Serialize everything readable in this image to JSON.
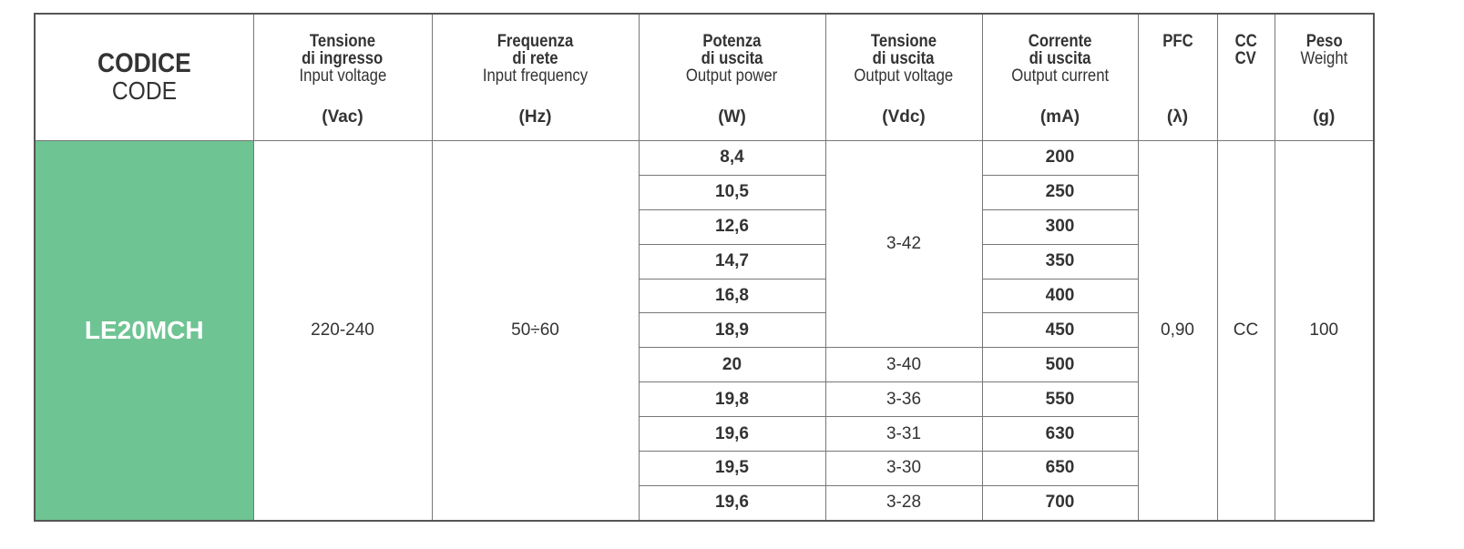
{
  "header": {
    "columns": [
      {
        "bold": [
          "CODICE"
        ],
        "regular": [
          "CODE"
        ]
      },
      {
        "bold": [
          "Tensione",
          "di ingresso"
        ],
        "regular": [
          "Input voltage"
        ],
        "unit": "(Vac)"
      },
      {
        "bold": [
          "Frequenza",
          "di rete"
        ],
        "regular": [
          "Input frequency"
        ],
        "unit": "(Hz)"
      },
      {
        "bold": [
          "Potenza",
          "di uscita"
        ],
        "regular": [
          "Output power"
        ],
        "unit": "(W)"
      },
      {
        "bold": [
          "Tensione",
          "di uscita"
        ],
        "regular": [
          "Output voltage"
        ],
        "unit": "(Vdc)"
      },
      {
        "bold": [
          "Corrente",
          "di uscita"
        ],
        "regular": [
          "Output current"
        ],
        "unit": "(mA)"
      },
      {
        "bold": [
          "PFC"
        ],
        "unit": "(λ)"
      },
      {
        "bold": [
          "CC",
          "CV"
        ]
      },
      {
        "bold": [
          "Peso"
        ],
        "regular": [
          "Weight"
        ],
        "unit": "(g)"
      }
    ]
  },
  "body": {
    "code": "LE20MCH",
    "input_voltage": "220-240",
    "input_frequency": "50÷60",
    "output_power": [
      "8,4",
      "10,5",
      "12,6",
      "14,7",
      "16,8",
      "18,9",
      "20",
      "19,8",
      "19,6",
      "19,5",
      "19,6"
    ],
    "output_voltage": [
      "3-42",
      null,
      null,
      null,
      null,
      null,
      "3-40",
      "3-36",
      "3-31",
      "3-30",
      "3-28"
    ],
    "output_current": [
      "200",
      "250",
      "300",
      "350",
      "400",
      "450",
      "500",
      "550",
      "630",
      "650",
      "700"
    ],
    "pfc": "0,90",
    "cc_cv": "CC",
    "weight": "100"
  }
}
